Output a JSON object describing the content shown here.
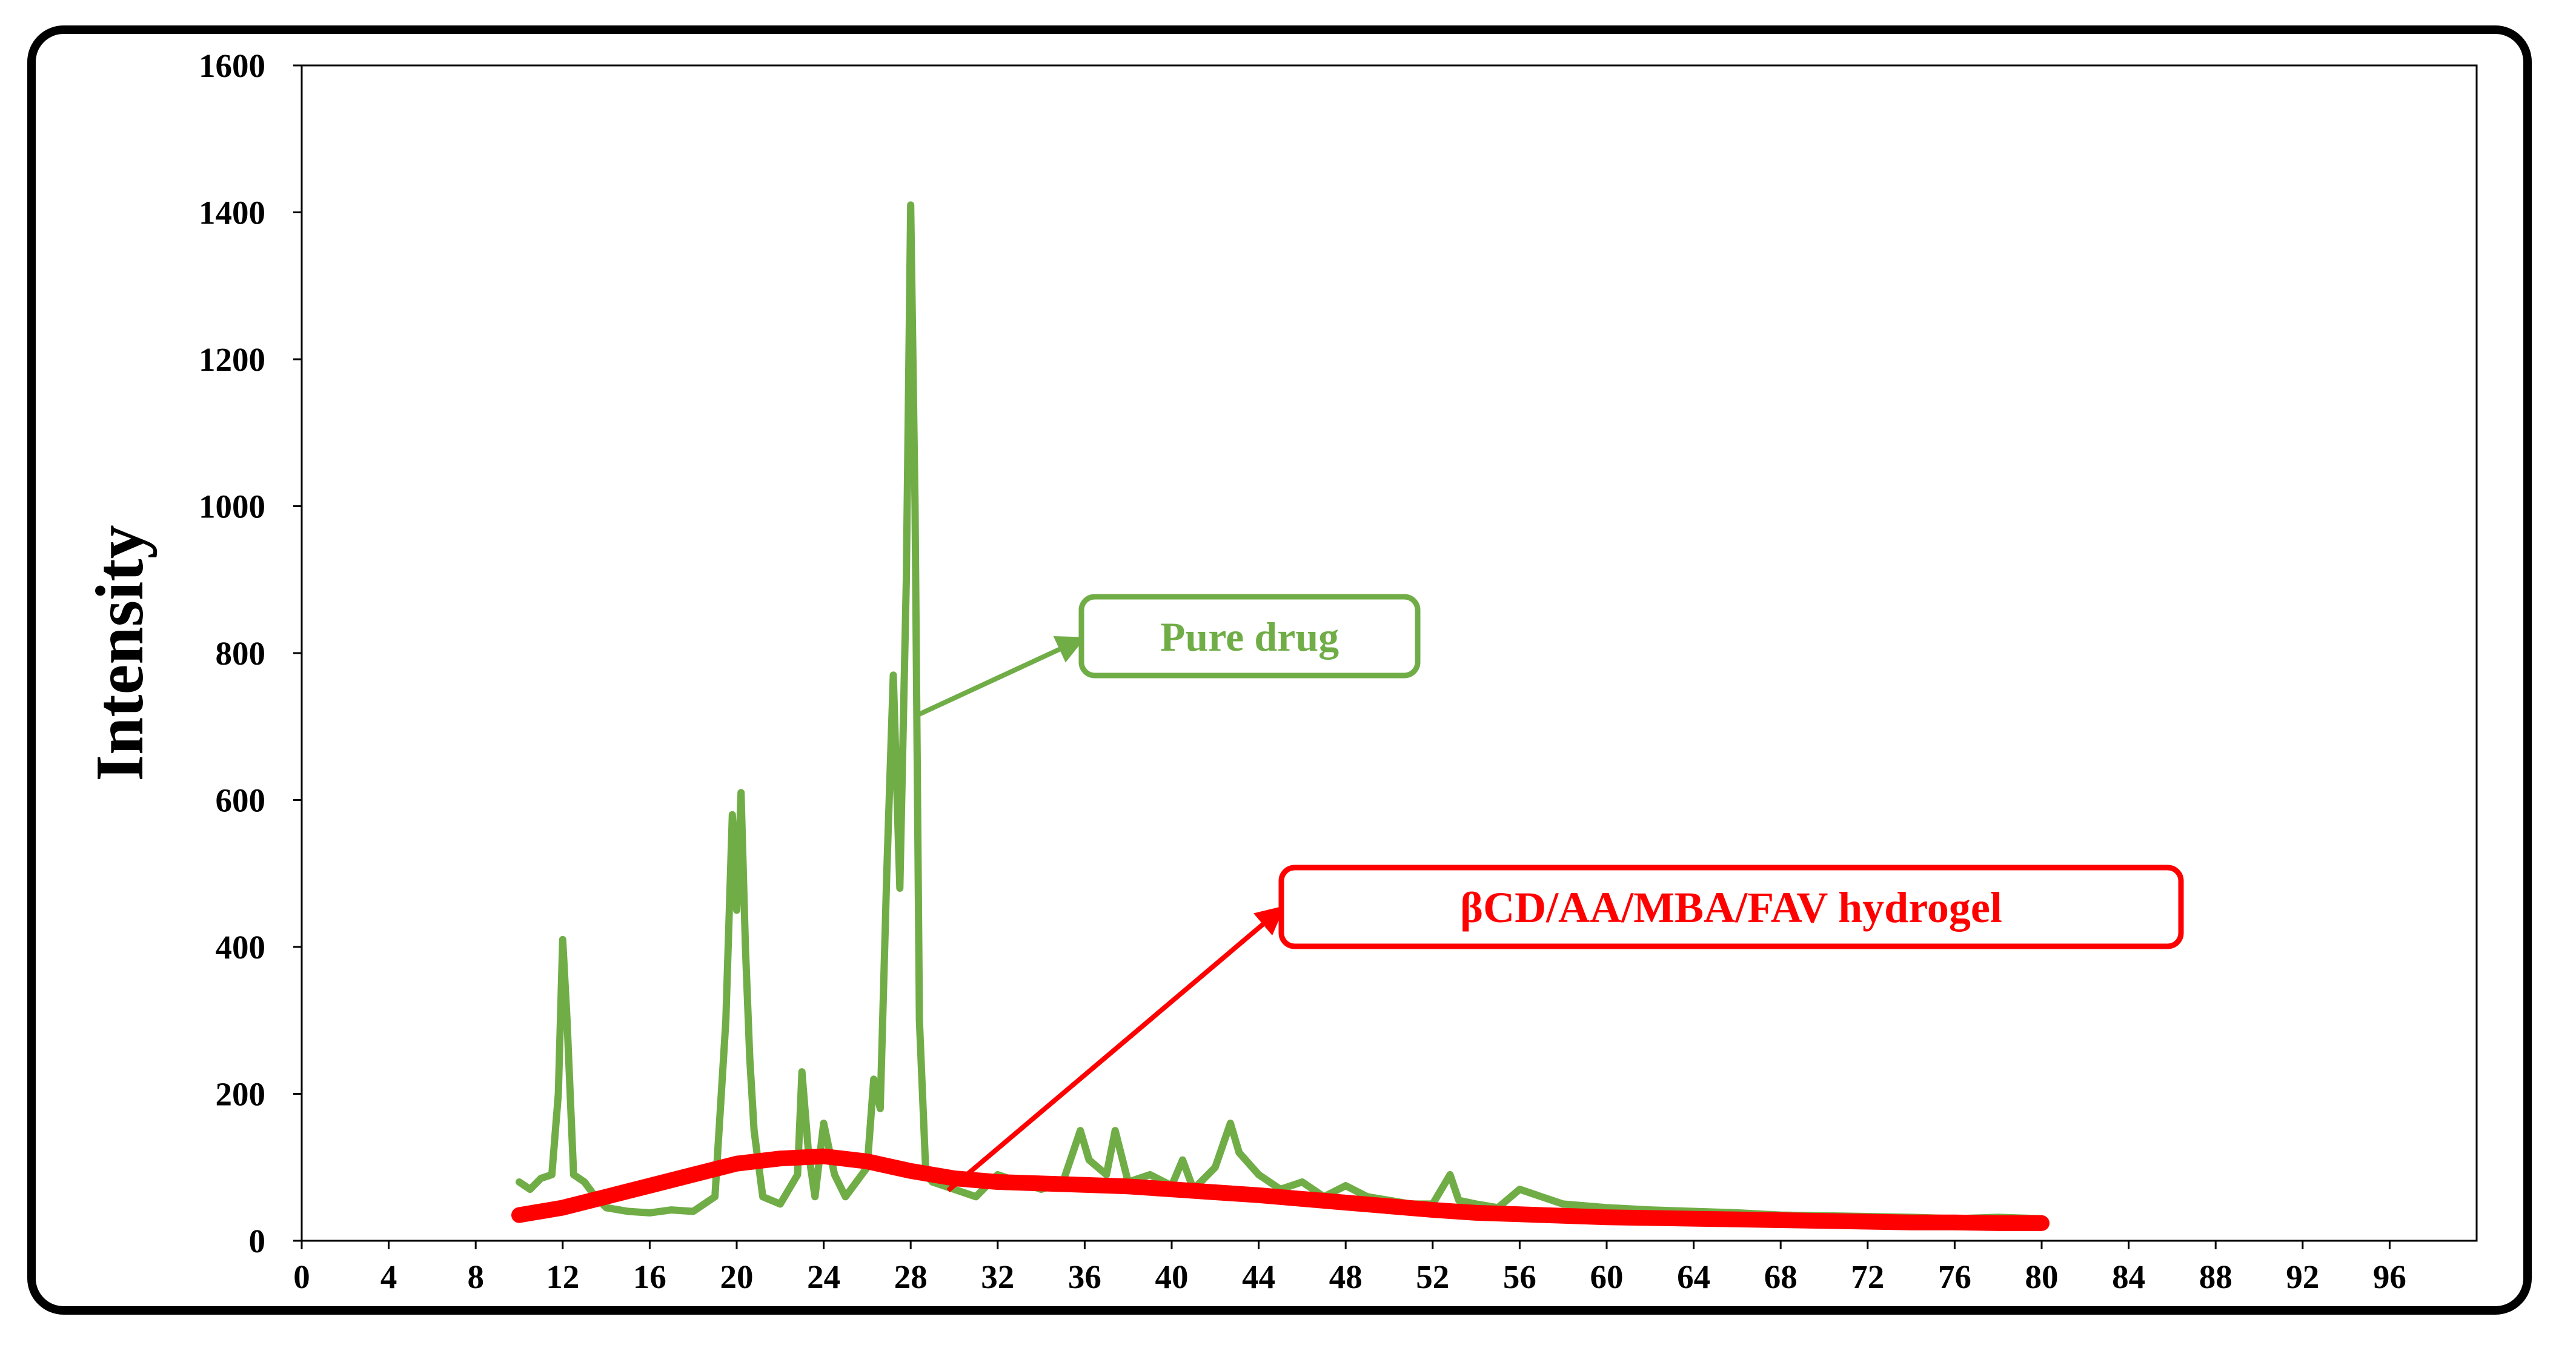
{
  "chart_data": {
    "type": "line",
    "title": "",
    "xlabel": "",
    "ylabel": "Intensity",
    "xlim": [
      0,
      100
    ],
    "ylim": [
      0,
      1600
    ],
    "x_ticks": [
      0,
      4,
      8,
      12,
      16,
      20,
      24,
      28,
      32,
      36,
      40,
      44,
      48,
      52,
      56,
      60,
      64,
      68,
      72,
      76,
      80,
      84,
      88,
      92,
      96
    ],
    "y_ticks": [
      0,
      200,
      400,
      600,
      800,
      1000,
      1200,
      1400,
      1600
    ],
    "grid": false,
    "legend": "none",
    "series": [
      {
        "name": "Pure drug",
        "color": "#70ad47",
        "x": [
          10.0,
          10.5,
          11.0,
          11.5,
          11.8,
          12.0,
          12.2,
          12.5,
          13.0,
          13.5,
          14.0,
          15.0,
          16.0,
          17.0,
          18.0,
          19.0,
          19.5,
          19.8,
          20.0,
          20.2,
          20.4,
          20.6,
          20.8,
          21.2,
          22.0,
          22.8,
          23.0,
          23.3,
          23.6,
          24.0,
          24.5,
          25.0,
          25.5,
          26.0,
          26.3,
          26.6,
          26.9,
          27.2,
          27.5,
          27.8,
          28.0,
          28.2,
          28.4,
          28.7,
          29.0,
          30.0,
          31.0,
          32.0,
          33.0,
          34.0,
          35.0,
          35.8,
          36.2,
          37.0,
          37.4,
          38.0,
          39.0,
          40.0,
          40.5,
          41.0,
          42.0,
          42.7,
          43.1,
          44.0,
          45.0,
          46.0,
          47.0,
          48.0,
          49.0,
          50.0,
          51.0,
          52.0,
          52.8,
          53.2,
          54.0,
          55.0,
          56.0,
          58.0,
          60.0,
          62.0,
          64.0,
          66.0,
          68.0,
          70.0,
          72.0,
          74.0,
          76.0,
          78.0,
          80.0
        ],
        "values": [
          80,
          70,
          85,
          90,
          200,
          410,
          300,
          90,
          80,
          60,
          45,
          40,
          38,
          42,
          40,
          60,
          300,
          580,
          450,
          610,
          400,
          250,
          150,
          60,
          50,
          90,
          230,
          120,
          60,
          160,
          90,
          60,
          80,
          100,
          220,
          180,
          500,
          770,
          480,
          900,
          1410,
          1000,
          300,
          90,
          80,
          70,
          60,
          90,
          80,
          70,
          80,
          150,
          110,
          90,
          150,
          80,
          90,
          75,
          110,
          70,
          100,
          160,
          120,
          90,
          70,
          80,
          60,
          75,
          60,
          55,
          50,
          50,
          90,
          55,
          50,
          45,
          70,
          50,
          45,
          42,
          40,
          38,
          35,
          34,
          33,
          32,
          30,
          32,
          30
        ]
      },
      {
        "name": "βCD/AA/MBA/FAV hydrogel",
        "color": "#ff0000",
        "x": [
          10,
          12,
          14,
          16,
          18,
          20,
          22,
          24,
          26,
          28,
          30,
          32,
          34,
          36,
          38,
          40,
          42,
          44,
          46,
          48,
          50,
          52,
          54,
          56,
          58,
          60,
          62,
          64,
          66,
          68,
          70,
          72,
          74,
          76,
          78,
          80
        ],
        "values": [
          35,
          45,
          60,
          75,
          90,
          105,
          112,
          115,
          108,
          95,
          85,
          80,
          78,
          76,
          74,
          70,
          66,
          62,
          57,
          52,
          47,
          42,
          38,
          36,
          34,
          32,
          31,
          30,
          29,
          28,
          27,
          26,
          25,
          25,
          24,
          24
        ]
      }
    ],
    "annotations": [
      {
        "text": "Pure drug",
        "color": "#70ad47",
        "points_to": [
          28.5,
          700
        ]
      },
      {
        "text": "βCD/AA/MBA/FAV hydrogel",
        "color": "#ff0000",
        "points_to": [
          29.0,
          120
        ]
      }
    ]
  }
}
